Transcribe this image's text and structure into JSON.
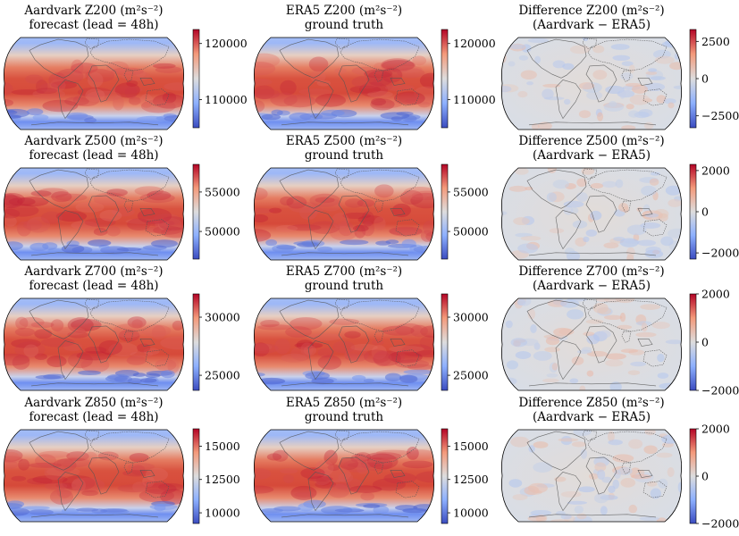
{
  "colors": {
    "colormap": "coolwarm",
    "cmap_low": "#3b4cc0",
    "cmap_mid": "#dddddd",
    "cmap_high": "#b40426",
    "coastline": "#555555"
  },
  "chart_data": [
    {
      "type": "heatmap",
      "level": "Z200",
      "panel": "forecast",
      "title": "Aardvark Z200 (m²s⁻²)",
      "subtitle": "forecast (lead = 48h)",
      "colorbar_ticks": [
        "120000",
        "110000"
      ],
      "colorbar_tick_values": [
        120000,
        110000
      ],
      "clim": [
        105000,
        122500
      ]
    },
    {
      "type": "heatmap",
      "level": "Z200",
      "panel": "truth",
      "title": "ERA5 Z200 (m²s⁻²)",
      "subtitle": "ground truth",
      "colorbar_ticks": [
        "120000",
        "110000"
      ],
      "colorbar_tick_values": [
        120000,
        110000
      ],
      "clim": [
        105000,
        122500
      ]
    },
    {
      "type": "heatmap",
      "level": "Z200",
      "panel": "difference",
      "title": "Difference Z200 (m²s⁻²)",
      "subtitle": "(Aardvark − ERA5)",
      "colorbar_ticks": [
        "2500",
        "0",
        "−2500"
      ],
      "colorbar_tick_values": [
        2500,
        0,
        -2500
      ],
      "clim": [
        -3300,
        3300
      ]
    },
    {
      "type": "heatmap",
      "level": "Z500",
      "panel": "forecast",
      "title": "Aardvark Z500 (m²s⁻²)",
      "subtitle": "forecast (lead = 48h)",
      "colorbar_ticks": [
        "55000",
        "50000"
      ],
      "colorbar_tick_values": [
        55000,
        50000
      ],
      "clim": [
        46500,
        58500
      ]
    },
    {
      "type": "heatmap",
      "level": "Z500",
      "panel": "truth",
      "title": "ERA5 Z500 (m²s⁻²)",
      "subtitle": "ground truth",
      "colorbar_ticks": [
        "55000",
        "50000"
      ],
      "colorbar_tick_values": [
        55000,
        50000
      ],
      "clim": [
        46500,
        58500
      ]
    },
    {
      "type": "heatmap",
      "level": "Z500",
      "panel": "difference",
      "title": "Difference Z500 (m²s⁻²)",
      "subtitle": "(Aardvark − ERA5)",
      "colorbar_ticks": [
        "2000",
        "0",
        "−2000"
      ],
      "colorbar_tick_values": [
        2000,
        0,
        -2000
      ],
      "clim": [
        -2300,
        2300
      ]
    },
    {
      "type": "heatmap",
      "level": "Z700",
      "panel": "forecast",
      "title": "Aardvark Z700 (m²s⁻²)",
      "subtitle": "forecast (lead = 48h)",
      "colorbar_ticks": [
        "30000",
        "25000"
      ],
      "colorbar_tick_values": [
        30000,
        25000
      ],
      "clim": [
        23700,
        32000
      ]
    },
    {
      "type": "heatmap",
      "level": "Z700",
      "panel": "truth",
      "title": "ERA5 Z700 (m²s⁻²)",
      "subtitle": "ground truth",
      "colorbar_ticks": [
        "30000",
        "25000"
      ],
      "colorbar_tick_values": [
        30000,
        25000
      ],
      "clim": [
        23700,
        32000
      ]
    },
    {
      "type": "heatmap",
      "level": "Z700",
      "panel": "difference",
      "title": "Difference Z700 (m²s⁻²)",
      "subtitle": "(Aardvark − ERA5)",
      "colorbar_ticks": [
        "2000",
        "0",
        "−2000"
      ],
      "colorbar_tick_values": [
        2000,
        0,
        -2000
      ],
      "clim": [
        -2000,
        2000
      ]
    },
    {
      "type": "heatmap",
      "level": "Z850",
      "panel": "forecast",
      "title": "Aardvark Z850 (m²s⁻²)",
      "subtitle": "forecast (lead = 48h)",
      "colorbar_ticks": [
        "15000",
        "12500",
        "10000"
      ],
      "colorbar_tick_values": [
        15000,
        12500,
        10000
      ],
      "clim": [
        9200,
        16300
      ]
    },
    {
      "type": "heatmap",
      "level": "Z850",
      "panel": "truth",
      "title": "ERA5 Z850 (m²s⁻²)",
      "subtitle": "ground truth",
      "colorbar_ticks": [
        "15000",
        "12500",
        "10000"
      ],
      "colorbar_tick_values": [
        15000,
        12500,
        10000
      ],
      "clim": [
        9200,
        16300
      ]
    },
    {
      "type": "heatmap",
      "level": "Z850",
      "panel": "difference",
      "title": "Difference Z850 (m²s⁻²)",
      "subtitle": "(Aardvark − ERA5)",
      "colorbar_ticks": [
        "2000",
        "0",
        "−2000"
      ],
      "colorbar_tick_values": [
        2000,
        0,
        -2000
      ],
      "clim": [
        -2000,
        2000
      ]
    }
  ]
}
